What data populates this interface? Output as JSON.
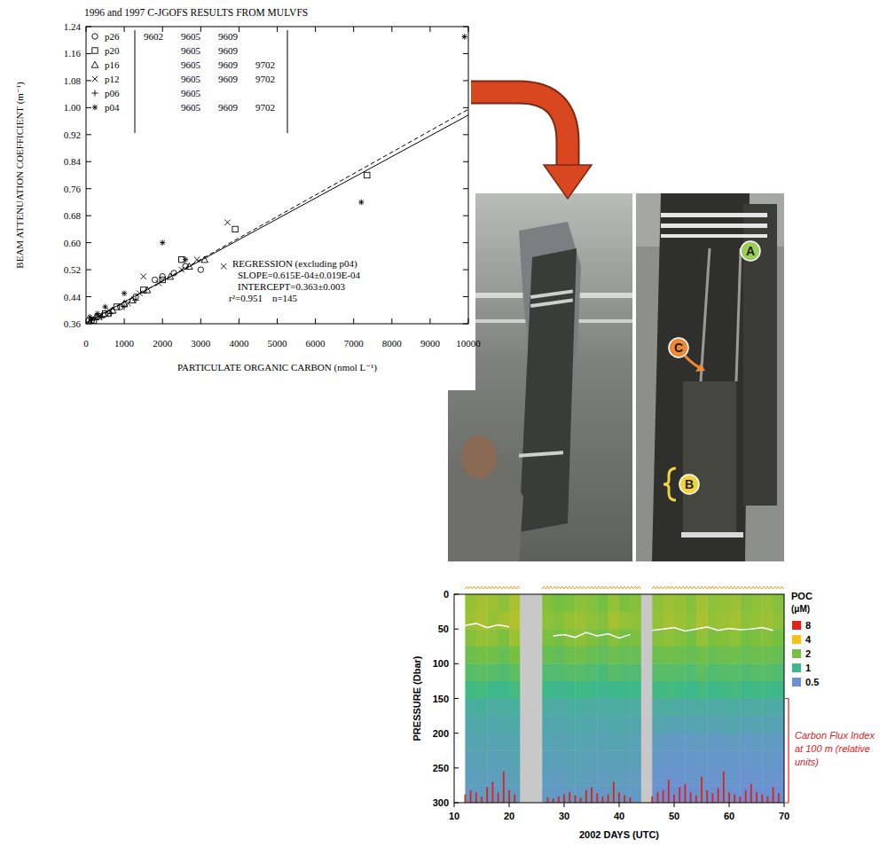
{
  "chart_data": [
    {
      "type": "scatter",
      "title": "1996 and 1997 C-JGOFS RESULTS FROM MULVFS",
      "x_label": "PARTICULATE ORGANIC CARBON (nmol L⁻¹)",
      "y_label": "BEAM ATTENUATION COEFFICIENT (m⁻¹)",
      "xlim": [
        0,
        10000
      ],
      "ylim": [
        0.36,
        1.24
      ],
      "xticks": [
        0,
        1000,
        2000,
        3000,
        4000,
        5000,
        6000,
        7000,
        8000,
        9000,
        10000
      ],
      "yticks": [
        0.36,
        0.44,
        0.52,
        {
          "value": 0.6,
          "label": "0.60"
        },
        0.68,
        0.76,
        0.84,
        0.92,
        {
          "value": 1,
          "label": "1.00"
        },
        1.08,
        1.16,
        1.24
      ],
      "grid": false,
      "legend": "upper left",
      "series": [
        {
          "name": "p26",
          "marker": "circle",
          "color": "#000000",
          "cruises": [
            "9602",
            "9605",
            "9609"
          ],
          "x": [
            150,
            300,
            450,
            600,
            900,
            1300,
            1800,
            2000,
            2300,
            2600,
            3000
          ],
          "values": [
            0.37,
            0.38,
            0.385,
            0.39,
            0.41,
            0.44,
            0.49,
            0.5,
            0.51,
            0.53,
            0.52
          ]
        },
        {
          "name": "p20",
          "marker": "square",
          "color": "#000000",
          "cruises": [
            "9605",
            "9609"
          ],
          "x": [
            200,
            500,
            800,
            1500,
            2000,
            2500,
            3900,
            7350
          ],
          "values": [
            0.37,
            0.39,
            0.41,
            0.46,
            0.49,
            0.55,
            0.64,
            0.8
          ]
        },
        {
          "name": "p16",
          "marker": "triangle",
          "color": "#000000",
          "cruises": [
            "9605",
            "9609",
            "9702"
          ],
          "x": [
            250,
            700,
            1000,
            1200,
            1600,
            2200,
            2700,
            3100
          ],
          "values": [
            0.38,
            0.4,
            0.42,
            0.43,
            0.46,
            0.5,
            0.53,
            0.55
          ]
        },
        {
          "name": "p12",
          "marker": "x",
          "color": "#000000",
          "cruises": [
            "9605",
            "9609",
            "9702"
          ],
          "x": [
            100,
            350,
            600,
            1100,
            1400,
            1900,
            2500,
            2900,
            3700,
            3600,
            1500
          ],
          "values": [
            0.37,
            0.38,
            0.4,
            0.42,
            0.45,
            0.48,
            0.52,
            0.55,
            0.66,
            0.53,
            0.5
          ]
        },
        {
          "name": "p06",
          "marker": "plus",
          "color": "#000000",
          "cruises": [
            "9605"
          ],
          "x": [
            150,
            400,
            650,
            1000,
            1300
          ],
          "values": [
            0.37,
            0.38,
            0.39,
            0.41,
            0.43
          ]
        },
        {
          "name": "p04",
          "marker": "asterisk",
          "color": "#000000",
          "cruises": [
            "9605",
            "9609",
            "9702"
          ],
          "x": [
            100,
            300,
            500,
            1000,
            2000,
            2600,
            7200,
            9900
          ],
          "values": [
            0.38,
            0.39,
            0.41,
            0.45,
            0.6,
            0.55,
            0.72,
            1.21
          ]
        }
      ],
      "regression": [
        {
          "slope": 6.15e-05,
          "intercept": 0.363,
          "line_style": "solid",
          "color": "#000000"
        },
        {
          "slope": 6.35e-05,
          "intercept": 0.36,
          "line_style": "dashed",
          "color": "#000000"
        }
      ],
      "annotations": [
        "REGRESSION (excluding p04)",
        "SLOPE=0.615E-04±0.019E-04",
        "INTERCEPT=0.363±0.003",
        "r²=0.951    n=145"
      ]
    },
    {
      "type": "heatmap",
      "x_label": "2002 DAYS (UTC)",
      "y_label": "PRESSURE (Dbar)",
      "xlim": [
        10,
        70
      ],
      "ylim": [
        300,
        0
      ],
      "xticks": [
        10,
        20,
        30,
        40,
        50,
        60,
        70
      ],
      "yticks": [
        0,
        50,
        100,
        150,
        200,
        250,
        300
      ],
      "grid": false,
      "x_edges": [
        12,
        14,
        16,
        18,
        20,
        22,
        24,
        26,
        28,
        30,
        32,
        34,
        36,
        38,
        40,
        42,
        44,
        46,
        48,
        50,
        52,
        54,
        56,
        58,
        60,
        62,
        64,
        66,
        68,
        70
      ],
      "y_edges": [
        0,
        25,
        50,
        75,
        100,
        125,
        150,
        175,
        200,
        225,
        250,
        275,
        300
      ],
      "cells": [
        [
          2.4,
          2.6,
          2.5,
          2.3,
          2.7,
          null,
          null,
          2.2,
          2.0,
          2.1,
          2.3,
          2.2,
          2.0,
          2.4,
          2.1,
          2.2,
          null,
          2.3,
          2.5,
          2.4,
          2.2,
          2.6,
          2.3,
          2.4,
          2.5,
          2.2,
          2.3,
          2.4,
          2.2
        ],
        [
          2.5,
          2.7,
          2.4,
          2.6,
          2.8,
          null,
          null,
          2.3,
          2.2,
          2.4,
          2.5,
          2.3,
          2.2,
          2.6,
          2.4,
          2.3,
          null,
          2.4,
          2.6,
          2.5,
          2.3,
          2.7,
          2.4,
          2.5,
          2.6,
          2.3,
          2.4,
          2.5,
          2.3
        ],
        [
          2.2,
          2.4,
          2.3,
          2.1,
          2.5,
          null,
          null,
          2.1,
          2.0,
          2.2,
          2.3,
          2.1,
          1.9,
          2.2,
          2.0,
          2.1,
          null,
          2.2,
          2.3,
          2.2,
          2.0,
          2.4,
          2.1,
          2.2,
          2.3,
          2.0,
          2.1,
          2.2,
          2.0
        ],
        [
          1.8,
          2.0,
          1.9,
          1.7,
          2.0,
          null,
          null,
          1.7,
          1.6,
          1.8,
          1.9,
          1.7,
          1.6,
          1.8,
          1.7,
          1.7,
          null,
          1.8,
          1.9,
          1.8,
          1.7,
          1.9,
          1.7,
          1.8,
          1.9,
          1.7,
          1.8,
          1.8,
          1.7
        ],
        [
          1.4,
          1.5,
          1.4,
          1.3,
          1.5,
          null,
          null,
          1.3,
          1.3,
          1.4,
          1.4,
          1.3,
          1.2,
          1.4,
          1.3,
          1.3,
          null,
          1.4,
          1.4,
          1.4,
          1.3,
          1.5,
          1.3,
          1.4,
          1.4,
          1.3,
          1.4,
          1.4,
          1.3
        ],
        [
          1.05,
          1.1,
          1.0,
          1.0,
          1.1,
          null,
          null,
          1.0,
          0.95,
          1.0,
          1.05,
          1.0,
          0.95,
          1.0,
          1.0,
          1.0,
          null,
          1.05,
          1.1,
          1.05,
          1.0,
          1.1,
          1.0,
          1.05,
          1.1,
          1.0,
          1.05,
          1.05,
          1.0
        ],
        [
          0.82,
          0.85,
          0.8,
          0.83,
          0.86,
          null,
          null,
          0.8,
          0.78,
          0.82,
          0.84,
          0.8,
          0.79,
          0.83,
          0.81,
          0.8,
          null,
          0.8,
          0.82,
          0.78,
          0.8,
          0.81,
          0.79,
          0.8,
          0.82,
          0.78,
          0.8,
          0.81,
          0.79
        ],
        [
          0.75,
          0.78,
          0.74,
          0.76,
          0.79,
          null,
          null,
          0.74,
          0.72,
          0.75,
          0.77,
          0.74,
          0.73,
          0.76,
          0.75,
          0.74,
          null,
          0.72,
          0.7,
          0.68,
          0.7,
          0.71,
          0.69,
          0.7,
          0.72,
          0.68,
          0.69,
          0.7,
          0.68
        ],
        [
          0.7,
          0.72,
          0.69,
          0.71,
          0.73,
          null,
          null,
          0.7,
          0.68,
          0.7,
          0.72,
          0.69,
          0.68,
          0.71,
          0.7,
          0.69,
          null,
          0.62,
          0.6,
          0.58,
          0.6,
          0.61,
          0.59,
          0.6,
          0.62,
          0.58,
          0.6,
          0.61,
          0.6
        ],
        [
          0.67,
          0.69,
          0.66,
          0.68,
          0.7,
          null,
          null,
          0.67,
          0.66,
          0.68,
          0.69,
          0.66,
          0.65,
          0.68,
          0.67,
          0.66,
          null,
          0.58,
          0.57,
          0.55,
          0.57,
          0.58,
          0.56,
          0.57,
          0.58,
          0.55,
          0.57,
          0.58,
          0.56
        ],
        [
          0.63,
          0.65,
          0.62,
          0.64,
          0.66,
          null,
          null,
          0.63,
          0.62,
          0.64,
          0.65,
          0.62,
          0.61,
          0.64,
          0.63,
          0.62,
          null,
          0.55,
          0.54,
          0.53,
          0.55,
          0.56,
          0.54,
          0.55,
          0.56,
          0.53,
          0.55,
          0.55,
          0.54
        ],
        [
          0.6,
          0.62,
          0.59,
          0.61,
          0.63,
          null,
          null,
          0.6,
          0.58,
          0.6,
          0.62,
          0.59,
          0.58,
          0.61,
          0.6,
          0.59,
          null,
          0.53,
          0.52,
          0.51,
          0.53,
          0.54,
          0.52,
          0.53,
          0.54,
          0.51,
          0.53,
          0.53,
          0.52
        ]
      ],
      "colorbar": {
        "title": "POC",
        "unit": "(μM)",
        "ticks": [
          8,
          4,
          2,
          1,
          0.5
        ],
        "colors": [
          "#e32118",
          "#f3c316",
          "#74c043",
          "#3db88a",
          "#6e8fd6"
        ]
      },
      "lines": [
        {
          "color": "#ffffff",
          "line_style": "solid",
          "x": [
            12,
            14,
            16,
            18,
            20,
            22,
            24,
            26,
            28,
            30,
            32,
            34,
            36,
            38,
            40,
            42,
            44,
            46,
            48,
            50,
            52,
            54,
            56,
            58,
            60,
            62,
            64,
            66,
            68
          ],
          "values": [
            45,
            42,
            48,
            44,
            47,
            null,
            null,
            null,
            60,
            58,
            62,
            55,
            60,
            57,
            63,
            58,
            null,
            52,
            50,
            48,
            53,
            50,
            47,
            52,
            49,
            51,
            50,
            48,
            52
          ]
        }
      ],
      "y2lim": [
        0,
        1
      ],
      "series": [
        {
          "name": "Carbon Flux Index at 100 m (relative units)",
          "type": "bar",
          "axis": "y2",
          "color": "#e0201b",
          "x": [
            12,
            13,
            14,
            15,
            16,
            17,
            18,
            19,
            20,
            21,
            27,
            28,
            29,
            30,
            31,
            32,
            33,
            34,
            35,
            36,
            37,
            38,
            39,
            40,
            41,
            42,
            46,
            47,
            48,
            49,
            50,
            51,
            52,
            53,
            54,
            55,
            56,
            57,
            58,
            59,
            60,
            61,
            62,
            63,
            64,
            65,
            66,
            67,
            68,
            69
          ],
          "values": [
            0.08,
            0.12,
            0.1,
            0.06,
            0.15,
            0.2,
            0.1,
            0.3,
            0.12,
            0.08,
            0.05,
            0.04,
            0.06,
            0.08,
            0.1,
            0.07,
            0.05,
            0.12,
            0.15,
            0.09,
            0.06,
            0.08,
            0.2,
            0.1,
            0.07,
            0.05,
            0.06,
            0.1,
            0.12,
            0.22,
            0.08,
            0.15,
            0.18,
            0.1,
            0.07,
            0.25,
            0.12,
            0.09,
            0.14,
            0.3,
            0.1,
            0.08,
            0.06,
            0.12,
            0.18,
            0.1,
            0.08,
            0.06,
            0.15,
            0.09
          ]
        }
      ]
    }
  ],
  "photo": {
    "labels": [
      {
        "text": "A",
        "color": "#9ccc5a"
      },
      {
        "text": "B",
        "color": "#f2d43a"
      },
      {
        "text": "C",
        "color": "#ef8a34"
      }
    ]
  }
}
